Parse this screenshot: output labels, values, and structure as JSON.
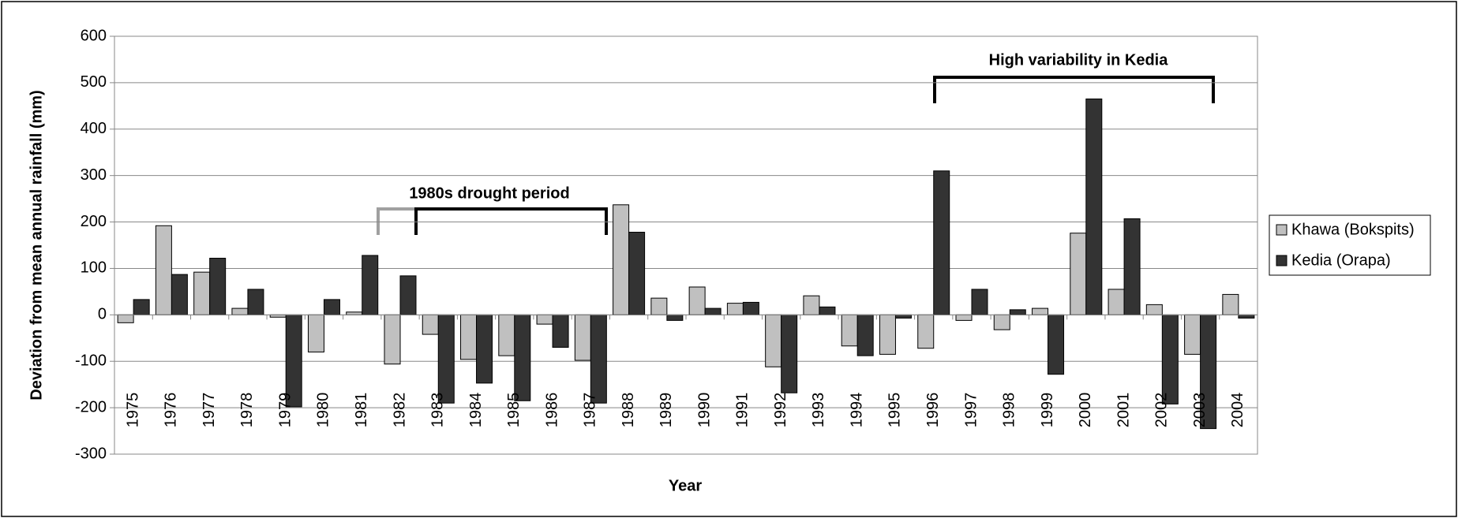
{
  "chart_data": {
    "type": "bar",
    "y_label": "Deviation from mean annual rainfall (mm)",
    "x_label": "Year",
    "annotations": [
      "1980s drought period",
      "High variability in Kedia"
    ],
    "categories": [
      "1975",
      "1976",
      "1977",
      "1978",
      "1979",
      "1980",
      "1981",
      "1982",
      "1983",
      "1984",
      "1985",
      "1986",
      "1987",
      "1988",
      "1989",
      "1990",
      "1991",
      "1992",
      "1993",
      "1994",
      "1995",
      "1996",
      "1997",
      "1998",
      "1999",
      "2000",
      "2001",
      "2002",
      "2003",
      "2004"
    ],
    "series": [
      {
        "name": "Khawa (Bokspits)",
        "color": "#c0c0c0",
        "values": [
          -17,
          192,
          92,
          14,
          -5,
          -80,
          6,
          -106,
          -42,
          -96,
          -88,
          -20,
          -98,
          237,
          36,
          60,
          25,
          -112,
          41,
          -67,
          -85,
          -72,
          -12,
          -32,
          14,
          176,
          55,
          22,
          -85,
          44
        ]
      },
      {
        "name": "Kedia (Orapa)",
        "color": "#333333",
        "values": [
          33,
          87,
          122,
          55,
          -198,
          33,
          128,
          84,
          -190,
          -147,
          -185,
          -70,
          -190,
          178,
          -12,
          14,
          27,
          -168,
          17,
          -88,
          -7,
          310,
          55,
          11,
          -128,
          465,
          207,
          -192,
          -245,
          -7
        ]
      }
    ],
    "ylim": [
      -300,
      600
    ],
    "yticks": [
      -300,
      -200,
      -100,
      0,
      100,
      200,
      300,
      400,
      500,
      600
    ],
    "grid": true,
    "legend": "right"
  }
}
